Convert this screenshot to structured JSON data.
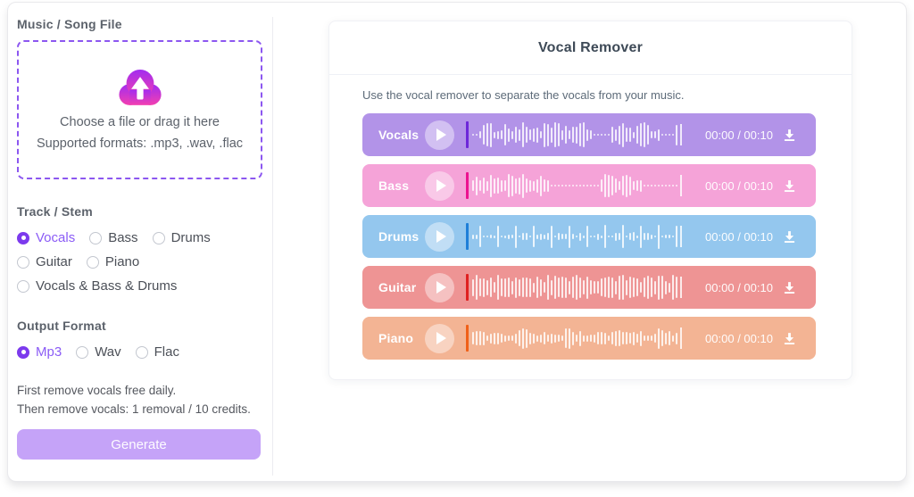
{
  "left_panel": {
    "file_section_label": "Music / Song File",
    "dropzone": {
      "line1": "Choose a file or drag it here",
      "line2": "Supported formats: .mp3, .wav, .flac"
    },
    "track_stem": {
      "label": "Track / Stem",
      "options": [
        {
          "label": "Vocals",
          "selected": true
        },
        {
          "label": "Bass",
          "selected": false
        },
        {
          "label": "Drums",
          "selected": false
        },
        {
          "label": "Guitar",
          "selected": false
        },
        {
          "label": "Piano",
          "selected": false
        },
        {
          "label": "Vocals & Bass & Drums",
          "selected": false
        }
      ]
    },
    "output_format": {
      "label": "Output Format",
      "options": [
        {
          "label": "Mp3",
          "selected": true
        },
        {
          "label": "Wav",
          "selected": false
        },
        {
          "label": "Flac",
          "selected": false
        }
      ]
    },
    "note_line1": "First remove vocals free daily.",
    "note_line2": "Then remove vocals: 1 removal / 10 credits.",
    "generate_label": "Generate"
  },
  "main_panel": {
    "title": "Vocal Remover",
    "description": "Use the vocal remover to separate the vocals from your music.",
    "tracks": [
      {
        "label": "Vocals",
        "time": "00:00 / 00:10",
        "bg": "#b293e8",
        "cursor": "#6d28d9",
        "pattern": "vocals"
      },
      {
        "label": "Bass",
        "time": "00:00 / 00:10",
        "bg": "#f5a3d8",
        "cursor": "#ec1390",
        "pattern": "bass"
      },
      {
        "label": "Drums",
        "time": "00:00 / 00:10",
        "bg": "#94c7ee",
        "cursor": "#1e7fd8",
        "pattern": "drums"
      },
      {
        "label": "Guitar",
        "time": "00:00 / 00:10",
        "bg": "#ee9494",
        "cursor": "#df2020",
        "pattern": "guitar"
      },
      {
        "label": "Piano",
        "time": "00:00 / 00:10",
        "bg": "#f3b494",
        "cursor": "#f06018",
        "pattern": "piano"
      }
    ]
  },
  "colors": {
    "accent_purple": "#7c3aed",
    "accent_purple_light": "#8b5cf6",
    "generate_button_bg": "#c5a3f8",
    "dropzone_border": "#8c57f0",
    "cloud_gradient_top": "#a22df0",
    "cloud_gradient_bottom": "#f33fb0"
  },
  "icons": {
    "upload_cloud": "cloud-upload-icon",
    "play": "play-icon",
    "download": "download-icon"
  }
}
